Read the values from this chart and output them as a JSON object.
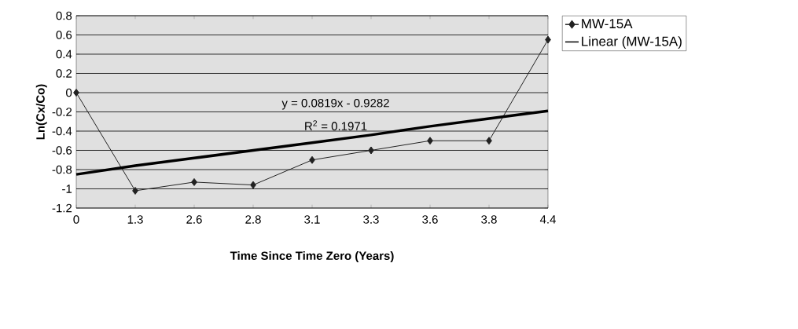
{
  "chart_data": {
    "type": "line",
    "xlabel": "Time Since Time Zero (Years)",
    "ylabel": "Ln(Cx/Co)",
    "categories": [
      "0",
      "1.3",
      "2.6",
      "2.8",
      "3.1",
      "3.3",
      "3.6",
      "3.8",
      "4.4"
    ],
    "series": [
      {
        "name": "MW-15A",
        "color": "#222222",
        "marker": "diamond",
        "values": [
          0,
          -1.02,
          -0.93,
          -0.96,
          -0.7,
          -0.6,
          -0.5,
          -0.5,
          0.55
        ]
      },
      {
        "name": "Linear (MW-15A)",
        "color": "#000000",
        "marker": "none",
        "values": [
          -0.85,
          -0.76,
          -0.68,
          -0.6,
          -0.52,
          -0.44,
          -0.35,
          -0.27,
          -0.19
        ]
      }
    ],
    "ylim": [
      -1.2,
      0.8
    ],
    "yticks": [
      -1.2,
      -1,
      -0.8,
      -0.6,
      -0.4,
      -0.2,
      0,
      0.2,
      0.4,
      0.6,
      0.8
    ],
    "grid": "y",
    "legend": "right",
    "annotations": [
      "y = 0.0819x - 0.9282",
      "R$^{2}$ = 0.1971"
    ]
  }
}
